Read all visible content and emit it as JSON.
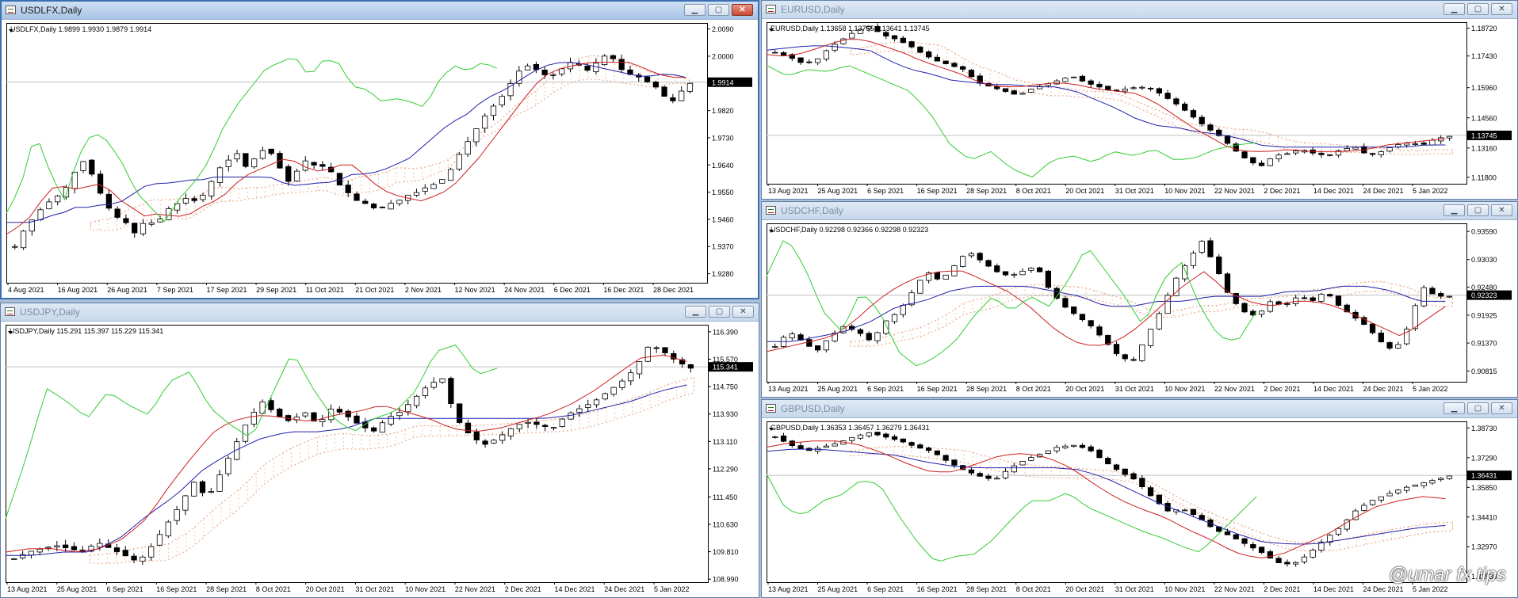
{
  "colors": {
    "tenkan": "#cc1f1f",
    "kijun": "#2020aa",
    "chikou": "#33cc33",
    "kumo": "#e8956a",
    "bull": "#ffffff",
    "bear": "#000000",
    "grid_price": "#c0c0c0"
  },
  "windows": [
    {
      "title": "USDLFX,Daily",
      "header": "USDLFX,Daily  1.9899 1.9930 1.9879 1.9914",
      "last": "1.9914",
      "active": true
    },
    {
      "title": "EURUSD,Daily",
      "header": "EURUSD,Daily  1.13658 1.13755 1.13641 1.13745",
      "last": "1.13745",
      "active": false
    },
    {
      "title": "USDCHF,Daily",
      "header": "USDCHF,Daily  0.92298 0.92366 0.92298 0.92323",
      "last": "0.92323",
      "active": false
    },
    {
      "title": "USDJPY,Daily",
      "header": "USDJPY,Daily  115.291 115.397 115.229 115.341",
      "last": "115.341",
      "active": false
    },
    {
      "title": "GBPUSD,Daily",
      "header": "GBPUSD,Daily  1.36353 1.36457 1.36279 1.36431",
      "last": "1.36431",
      "active": false
    }
  ],
  "chart_data": [
    {
      "type": "candlestick",
      "symbol": "USDLFX",
      "timeframe": "Daily",
      "indicator": "Ichimoku",
      "ohlc_last": [
        1.9899,
        1.993,
        1.9879,
        1.9914
      ],
      "yticks": [
        "2.0090",
        "2.0000",
        "1.9914",
        "1.9820",
        "1.9730",
        "1.9640",
        "1.9550",
        "1.9460",
        "1.9370",
        "1.9280"
      ],
      "ylim": [
        1.925,
        2.011
      ],
      "xticks": [
        "4 Aug 2021",
        "16 Aug 2021",
        "26 Aug 2021",
        "7 Sep 2021",
        "17 Sep 2021",
        "29 Sep 2021",
        "11 Oct 2021",
        "21 Oct 2021",
        "2 Nov 2021",
        "12 Nov 2021",
        "24 Nov 2021",
        "6 Dec 2021",
        "16 Dec 2021",
        "28 Dec 2021"
      ],
      "close_path": [
        1.937,
        1.943,
        1.947,
        1.951,
        1.953,
        1.956,
        1.962,
        1.966,
        1.958,
        1.951,
        1.947,
        1.945,
        1.941,
        1.946,
        1.944,
        1.949,
        1.951,
        1.953,
        1.952,
        1.955,
        1.962,
        1.965,
        1.968,
        1.963,
        1.967,
        1.97,
        1.965,
        1.958,
        1.962,
        1.966,
        1.963,
        1.964,
        1.958,
        1.955,
        1.952,
        1.951,
        1.949,
        1.951,
        1.952,
        1.954,
        1.955,
        1.957,
        1.958,
        1.961,
        1.967,
        1.972,
        1.977,
        1.982,
        1.985,
        1.99,
        1.995,
        1.997,
        1.995,
        1.993,
        1.995,
        1.998,
        1.997,
        1.995,
        1.999,
        2.001,
        1.996,
        1.994,
        1.993,
        1.991,
        1.989,
        1.984,
        1.988,
        1.991
      ],
      "tenkan": [
        1.941,
        1.944,
        1.948,
        1.956,
        1.957,
        1.956,
        1.957,
        1.958,
        1.953,
        1.95,
        1.947,
        1.948,
        1.947,
        1.947,
        1.95,
        1.952,
        1.955,
        1.96,
        1.962,
        1.964,
        1.966,
        1.965,
        1.962,
        1.962,
        1.964,
        1.964,
        1.96,
        1.956,
        1.954,
        1.953,
        1.952,
        1.954,
        1.956,
        1.961,
        1.966,
        1.972,
        1.978,
        1.984,
        1.99,
        1.994,
        1.996,
        1.997,
        1.998,
        1.998,
        1.998,
        1.998,
        1.996,
        1.994,
        1.993,
        1.993
      ],
      "kijun": [
        1.945,
        1.945,
        1.945,
        1.947,
        1.948,
        1.95,
        1.95,
        1.951,
        1.951,
        1.954,
        1.957,
        1.958,
        1.958,
        1.959,
        1.959,
        1.96,
        1.96,
        1.96,
        1.96,
        1.96,
        1.958,
        1.957,
        1.958,
        1.958,
        1.959,
        1.961,
        1.961,
        1.962,
        1.964,
        1.966,
        1.97,
        1.974,
        1.978,
        1.98,
        1.984,
        1.987,
        1.989,
        1.992,
        1.995,
        1.997,
        1.998,
        1.998,
        1.997,
        1.996,
        1.995,
        1.994,
        1.993,
        1.994,
        1.994,
        1.993
      ],
      "chikou": [
        1.948,
        1.957,
        1.975,
        1.962,
        1.952,
        1.967,
        1.975,
        1.972,
        1.965,
        1.955,
        1.95,
        1.945,
        1.953,
        1.958,
        1.965,
        1.976,
        1.984,
        1.99,
        1.996,
        1.998,
        2.0,
        1.993,
        1.999,
        1.998,
        1.99,
        1.989,
        1.985,
        1.986,
        1.985,
        1.983,
        1.992,
        1.997,
        1.995,
        1.998,
        1.996
      ]
    },
    {
      "type": "candlestick",
      "symbol": "EURUSD",
      "timeframe": "Daily",
      "indicator": "Ichimoku",
      "ohlc_last": [
        1.13658,
        1.13755,
        1.13641,
        1.13745
      ],
      "yticks": [
        "1.18720",
        "1.17430",
        "1.15960",
        "1.14560",
        "1.13745",
        "1.13160",
        "1.11800"
      ],
      "ylim": [
        1.115,
        1.19
      ],
      "xticks": [
        "13 Aug 2021",
        "25 Aug 2021",
        "6 Sep 2021",
        "16 Sep 2021",
        "28 Sep 2021",
        "8 Oct 2021",
        "20 Oct 2021",
        "31 Oct 2021",
        "10 Nov 2021",
        "22 Nov 2021",
        "2 Dec 2021",
        "14 Dec 2021",
        "24 Dec 2021",
        "5 Jan 2022"
      ],
      "close_path": [
        1.176,
        1.174,
        1.171,
        1.172,
        1.178,
        1.182,
        1.186,
        1.188,
        1.184,
        1.182,
        1.179,
        1.175,
        1.172,
        1.17,
        1.168,
        1.162,
        1.16,
        1.158,
        1.156,
        1.159,
        1.161,
        1.163,
        1.165,
        1.162,
        1.16,
        1.158,
        1.159,
        1.16,
        1.159,
        1.155,
        1.151,
        1.146,
        1.141,
        1.137,
        1.131,
        1.126,
        1.123,
        1.128,
        1.129,
        1.131,
        1.129,
        1.128,
        1.131,
        1.132,
        1.128,
        1.13,
        1.133,
        1.134,
        1.133,
        1.136,
        1.137
      ],
      "tenkan": [
        1.175,
        1.174,
        1.176,
        1.179,
        1.182,
        1.182,
        1.179,
        1.176,
        1.172,
        1.169,
        1.166,
        1.162,
        1.16,
        1.16,
        1.161,
        1.162,
        1.161,
        1.159,
        1.158,
        1.157,
        1.153,
        1.147,
        1.141,
        1.136,
        1.131,
        1.13,
        1.13,
        1.131,
        1.13,
        1.13,
        1.13,
        1.131,
        1.133,
        1.134,
        1.135,
        1.136
      ],
      "kijun": [
        1.177,
        1.178,
        1.179,
        1.179,
        1.178,
        1.177,
        1.172,
        1.168,
        1.166,
        1.163,
        1.162,
        1.161,
        1.161,
        1.16,
        1.16,
        1.158,
        1.154,
        1.15,
        1.145,
        1.142,
        1.141,
        1.139,
        1.138,
        1.136,
        1.133,
        1.132,
        1.132,
        1.132,
        1.132,
        1.132,
        1.132,
        1.132,
        1.133,
        1.133
      ],
      "chikou": [
        1.17,
        1.165,
        1.168,
        1.167,
        1.17,
        1.166,
        1.162,
        1.158,
        1.148,
        1.133,
        1.126,
        1.13,
        1.122,
        1.118,
        1.126,
        1.128,
        1.125,
        1.13,
        1.128,
        1.131,
        1.126,
        1.127,
        1.131,
        1.133,
        1.134
      ]
    },
    {
      "type": "candlestick",
      "symbol": "USDCHF",
      "timeframe": "Daily",
      "indicator": "Ichimoku",
      "ohlc_last": [
        0.92298,
        0.92366,
        0.92298,
        0.92323
      ],
      "yticks": [
        "0.93590",
        "0.93030",
        "0.92480",
        "0.92323",
        "0.91925",
        "0.91370",
        "0.90815"
      ],
      "ylim": [
        0.906,
        0.9375
      ],
      "xticks": [
        "13 Aug 2021",
        "25 Aug 2021",
        "6 Sep 2021",
        "16 Sep 2021",
        "28 Sep 2021",
        "8 Oct 2021",
        "20 Oct 2021",
        "31 Oct 2021",
        "10 Nov 2021",
        "22 Nov 2021",
        "2 Dec 2021",
        "14 Dec 2021",
        "24 Dec 2021",
        "5 Jan 2022"
      ],
      "close_path": [
        0.913,
        0.916,
        0.914,
        0.912,
        0.915,
        0.917,
        0.916,
        0.914,
        0.918,
        0.92,
        0.924,
        0.928,
        0.926,
        0.929,
        0.932,
        0.93,
        0.928,
        0.927,
        0.928,
        0.929,
        0.924,
        0.921,
        0.919,
        0.917,
        0.914,
        0.911,
        0.91,
        0.915,
        0.92,
        0.926,
        0.93,
        0.934,
        0.929,
        0.923,
        0.92,
        0.919,
        0.922,
        0.921,
        0.923,
        0.922,
        0.924,
        0.921,
        0.919,
        0.917,
        0.914,
        0.912,
        0.917,
        0.925,
        0.923,
        0.923
      ],
      "tenkan": [
        0.912,
        0.913,
        0.914,
        0.915,
        0.918,
        0.922,
        0.925,
        0.927,
        0.928,
        0.928,
        0.926,
        0.924,
        0.921,
        0.917,
        0.914,
        0.913,
        0.914,
        0.917,
        0.921,
        0.925,
        0.928,
        0.924,
        0.922,
        0.921,
        0.922,
        0.922,
        0.921,
        0.919,
        0.917,
        0.915,
        0.918,
        0.921
      ],
      "kijun": [
        0.914,
        0.914,
        0.915,
        0.916,
        0.918,
        0.921,
        0.922,
        0.924,
        0.925,
        0.925,
        0.925,
        0.924,
        0.923,
        0.921,
        0.921,
        0.922,
        0.922,
        0.923,
        0.923,
        0.923,
        0.924,
        0.924,
        0.925,
        0.925,
        0.924,
        0.922,
        0.922
      ],
      "chikou": [
        0.927,
        0.935,
        0.929,
        0.92,
        0.916,
        0.924,
        0.92,
        0.912,
        0.909,
        0.911,
        0.914,
        0.919,
        0.923,
        0.92,
        0.923,
        0.921,
        0.926,
        0.933,
        0.928,
        0.923,
        0.917,
        0.926,
        0.93,
        0.921,
        0.915,
        0.914,
        0.92
      ]
    },
    {
      "type": "candlestick",
      "symbol": "USDJPY",
      "timeframe": "Daily",
      "indicator": "Ichimoku",
      "ohlc_last": [
        115.291,
        115.397,
        115.229,
        115.341
      ],
      "yticks": [
        "116.390",
        "115.570",
        "115.341",
        "114.750",
        "113.930",
        "113.110",
        "112.290",
        "111.450",
        "110.630",
        "109.810",
        "108.990"
      ],
      "ylim": [
        108.9,
        116.6
      ],
      "xticks": [
        "13 Aug 2021",
        "25 Aug 2021",
        "6 Sep 2021",
        "16 Sep 2021",
        "28 Sep 2021",
        "8 Oct 2021",
        "20 Oct 2021",
        "31 Oct 2021",
        "10 Nov 2021",
        "22 Nov 2021",
        "2 Dec 2021",
        "14 Dec 2021",
        "24 Dec 2021",
        "5 Jan 2022"
      ],
      "close_path": [
        109.6,
        109.8,
        109.9,
        110.0,
        109.9,
        109.8,
        110.1,
        109.9,
        109.7,
        109.5,
        110.0,
        110.6,
        111.2,
        111.9,
        111.4,
        112.2,
        113.0,
        113.8,
        114.3,
        113.9,
        113.7,
        114.0,
        113.6,
        114.1,
        113.9,
        113.6,
        113.4,
        113.8,
        114.0,
        114.4,
        114.8,
        115.0,
        113.8,
        113.3,
        113.0,
        113.2,
        113.5,
        113.7,
        113.6,
        113.5,
        113.9,
        114.1,
        114.3,
        114.6,
        114.9,
        115.3,
        116.0,
        115.8,
        115.5,
        115.3
      ],
      "tenkan": [
        109.8,
        109.9,
        109.9,
        109.8,
        109.9,
        110.2,
        110.8,
        111.8,
        112.7,
        113.5,
        113.8,
        113.9,
        113.8,
        113.7,
        113.9,
        114.0,
        114.2,
        114.0,
        113.8,
        113.5,
        113.4,
        113.5,
        113.7,
        113.9,
        114.2,
        114.6,
        115.1,
        115.6,
        115.7,
        115.5
      ],
      "kijun": [
        109.7,
        109.7,
        109.8,
        109.8,
        110.2,
        110.9,
        111.5,
        112.3,
        112.8,
        113.2,
        113.4,
        113.4,
        113.5,
        113.8,
        113.8,
        113.8,
        113.8,
        113.8,
        113.8,
        113.8,
        113.9,
        114.1,
        114.3,
        114.6,
        114.8
      ],
      "chikou": [
        110.8,
        112.6,
        114.7,
        114.3,
        113.8,
        114.6,
        114.2,
        113.9,
        114.9,
        115.2,
        114.1,
        113.6,
        113.2,
        114.5,
        115.8,
        114.7,
        113.8,
        113.4,
        113.8,
        114.0,
        114.6,
        115.8,
        116.0,
        115.1,
        115.3
      ]
    },
    {
      "type": "candlestick",
      "symbol": "GBPUSD",
      "timeframe": "Daily",
      "indicator": "Ichimoku",
      "ohlc_last": [
        1.36353,
        1.36457,
        1.36279,
        1.36431
      ],
      "yticks": [
        "1.38730",
        "1.37290",
        "1.36431",
        "1.35850",
        "1.34410",
        "1.32970",
        "1.31530"
      ],
      "ylim": [
        1.3125,
        1.3905
      ],
      "xticks": [
        "13 Aug 2021",
        "25 Aug 2021",
        "6 Sep 2021",
        "16 Sep 2021",
        "28 Sep 2021",
        "8 Oct 2021",
        "20 Oct 2021",
        "31 Oct 2021",
        "10 Nov 2021",
        "22 Nov 2021",
        "2 Dec 2021",
        "14 Dec 2021",
        "24 Dec 2021",
        "5 Jan 2022"
      ],
      "close_path": [
        1.383,
        1.379,
        1.376,
        1.378,
        1.38,
        1.383,
        1.385,
        1.383,
        1.381,
        1.378,
        1.376,
        1.371,
        1.367,
        1.364,
        1.362,
        1.368,
        1.372,
        1.375,
        1.378,
        1.379,
        1.377,
        1.371,
        1.366,
        1.362,
        1.354,
        1.347,
        1.348,
        1.344,
        1.338,
        1.335,
        1.331,
        1.327,
        1.322,
        1.321,
        1.326,
        1.333,
        1.339,
        1.347,
        1.352,
        1.355,
        1.358,
        1.36,
        1.362,
        1.364
      ],
      "tenkan": [
        1.378,
        1.38,
        1.381,
        1.381,
        1.379,
        1.375,
        1.37,
        1.366,
        1.366,
        1.37,
        1.374,
        1.375,
        1.373,
        1.368,
        1.36,
        1.353,
        1.348,
        1.344,
        1.338,
        1.333,
        1.327,
        1.324,
        1.326,
        1.331,
        1.336,
        1.343,
        1.349,
        1.352,
        1.354,
        1.353
      ],
      "kijun": [
        1.376,
        1.377,
        1.377,
        1.376,
        1.375,
        1.374,
        1.371,
        1.369,
        1.368,
        1.368,
        1.368,
        1.368,
        1.367,
        1.363,
        1.357,
        1.351,
        1.346,
        1.341,
        1.336,
        1.332,
        1.331,
        1.331,
        1.333,
        1.335,
        1.337,
        1.339,
        1.34
      ],
      "chikou": [
        1.365,
        1.348,
        1.345,
        1.352,
        1.355,
        1.362,
        1.36,
        1.345,
        1.332,
        1.322,
        1.325,
        1.326,
        1.333,
        1.343,
        1.352,
        1.352,
        1.356,
        1.349,
        1.345,
        1.341,
        1.337,
        1.334,
        1.33,
        1.327,
        1.336,
        1.345,
        1.354
      ]
    }
  ],
  "watermark": "@umar fx tips"
}
